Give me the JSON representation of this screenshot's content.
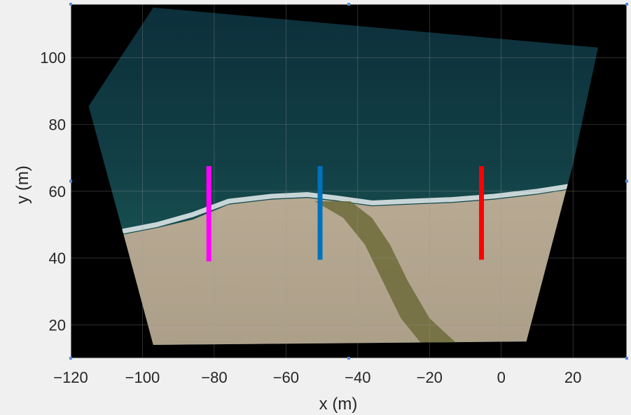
{
  "chart_data": {
    "type": "image",
    "xlabel": "x (m)",
    "ylabel": "y (m)",
    "xlim": [
      -120,
      35
    ],
    "ylim": [
      10,
      116
    ],
    "xticks": [
      -120,
      -100,
      -80,
      -60,
      -40,
      -20,
      0,
      20
    ],
    "yticks": [
      20,
      40,
      60,
      80,
      100
    ],
    "grid": true,
    "background_color": "#000000",
    "image_footprint": [
      [
        -115,
        85.5
      ],
      [
        -97,
        115
      ],
      [
        27,
        103
      ],
      [
        20,
        68
      ],
      [
        7,
        15
      ],
      [
        -97,
        14
      ],
      [
        -104,
        42
      ],
      [
        -115,
        85.5
      ]
    ],
    "transects": [
      {
        "color": "#ff00ff",
        "x": -81.5,
        "y": [
          39,
          67.5
        ]
      },
      {
        "color": "#0072bd",
        "x": -50.5,
        "y": [
          39.5,
          67.5
        ]
      },
      {
        "color": "#ff0000",
        "x": -5.5,
        "y": [
          39.5,
          67.5
        ]
      }
    ]
  }
}
